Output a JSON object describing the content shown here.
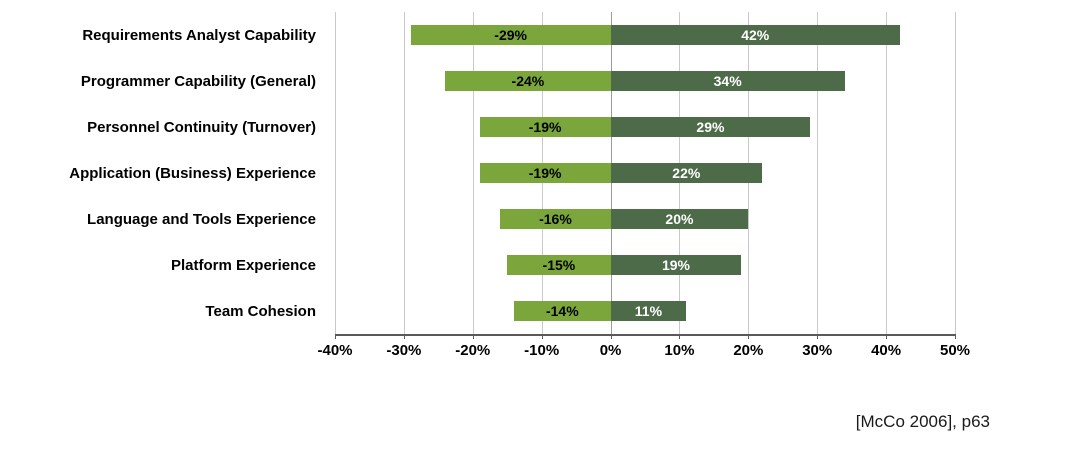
{
  "chart_data": {
    "type": "bar",
    "orientation": "horizontal-diverging",
    "categories": [
      "Requirements Analyst Capability",
      "Programmer Capability (General)",
      "Personnel Continuity (Turnover)",
      "Application (Business) Experience",
      "Language and Tools Experience",
      "Platform Experience",
      "Team Cohesion"
    ],
    "series": [
      {
        "name": "negative-impact",
        "values": [
          -29,
          -24,
          -19,
          -19,
          -16,
          -15,
          -14
        ],
        "color": "#7AA63C",
        "label_color": "#000000"
      },
      {
        "name": "positive-impact",
        "values": [
          42,
          34,
          29,
          22,
          20,
          19,
          11
        ],
        "color": "#4D6B49",
        "label_color": "#FFFFFF"
      }
    ],
    "value_suffix": "%",
    "xlim": [
      -40,
      50
    ],
    "x_ticks": [
      -40,
      -30,
      -20,
      -10,
      0,
      10,
      20,
      30,
      40,
      50
    ],
    "x_tick_labels": [
      "-40%",
      "-30%",
      "-20%",
      "-10%",
      "0%",
      "10%",
      "20%",
      "30%",
      "40%",
      "50%"
    ],
    "grid": true,
    "legend": "none",
    "title": "",
    "xlabel": "",
    "ylabel": ""
  },
  "citation": "[McCo 2006], p63"
}
